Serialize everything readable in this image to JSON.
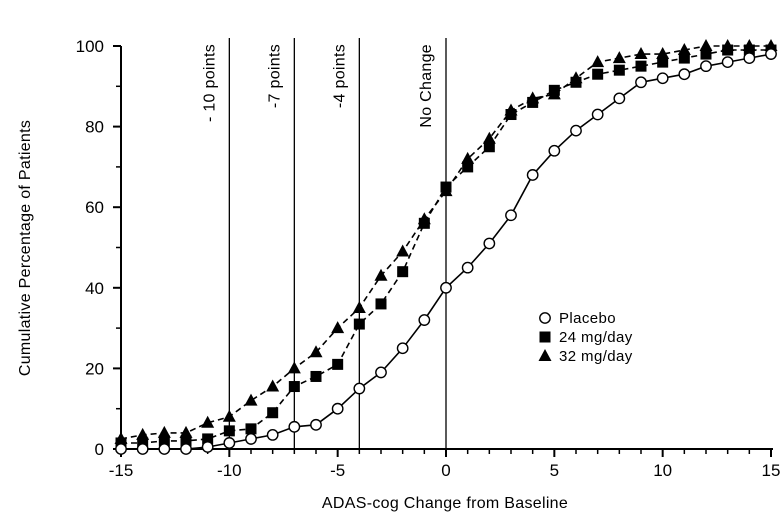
{
  "chart_data": {
    "type": "line",
    "title": "",
    "xlabel": "ADAS-cog Change from Baseline",
    "ylabel": "Cumulative  Percentage of Patients",
    "xlim": [
      -15,
      15
    ],
    "ylim": [
      0,
      100
    ],
    "x_ticks": [
      -15,
      -10,
      -5,
      0,
      5,
      10,
      15
    ],
    "y_ticks": [
      0,
      20,
      40,
      60,
      80,
      100
    ],
    "x_tick_labels": [
      "-15",
      "-10",
      "-5",
      "0",
      "5",
      "10",
      "15"
    ],
    "y_tick_labels": [
      "0",
      "20",
      "40",
      "60",
      "80",
      "100"
    ],
    "grid": false,
    "legend_placement": "right",
    "reference_lines": [
      {
        "x": -10,
        "label": "- 10 points"
      },
      {
        "x": -7,
        "label": "-7 points"
      },
      {
        "x": -4,
        "label": "-4 points"
      },
      {
        "x": 0,
        "label": "No Change"
      }
    ],
    "x": [
      -15,
      -14,
      -13,
      -12,
      -11,
      -10,
      -9,
      -8,
      -7,
      -6,
      -5,
      -4,
      -3,
      -2,
      -1,
      0,
      1,
      2,
      3,
      4,
      5,
      6,
      7,
      8,
      9,
      10,
      11,
      12,
      13,
      14,
      15
    ],
    "series": [
      {
        "name": "Placebo",
        "marker": "open-circle",
        "line": "solid",
        "values": [
          0,
          0,
          0,
          0,
          0.5,
          1.5,
          2.5,
          3.5,
          5.5,
          6,
          10,
          15,
          19,
          25,
          32,
          40,
          45,
          51,
          58,
          68,
          74,
          79,
          83,
          87,
          91,
          92,
          93,
          95,
          96,
          97,
          98
        ]
      },
      {
        "name": "24 mg/day",
        "marker": "filled-square",
        "line": "dashed",
        "values": [
          1.5,
          1.5,
          2,
          2,
          2.5,
          4.5,
          5,
          9,
          15.5,
          18,
          21,
          31,
          36,
          44,
          56,
          65,
          70,
          75,
          83,
          86,
          89,
          91,
          93,
          94,
          95,
          96,
          97,
          98,
          99,
          99,
          99
        ]
      },
      {
        "name": "32 mg/day",
        "marker": "filled-triangle",
        "line": "dashed",
        "values": [
          2.5,
          3.5,
          4,
          4,
          6.5,
          8,
          12,
          15.5,
          20,
          24,
          30,
          35,
          43,
          49,
          57,
          64,
          72,
          77,
          84,
          87,
          88,
          92,
          96,
          97,
          98,
          98,
          99,
          100,
          100,
          100,
          100
        ]
      }
    ]
  }
}
